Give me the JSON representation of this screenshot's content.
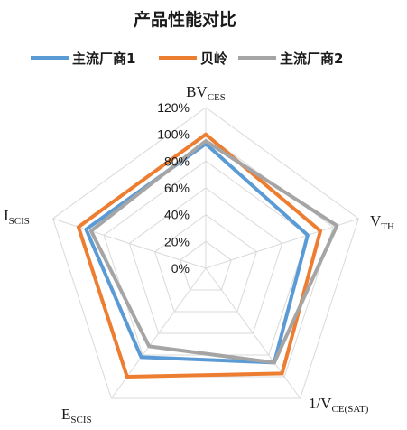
{
  "chart_data": {
    "type": "radar",
    "title": "产品性能对比",
    "legend_position": "top",
    "axes": [
      {
        "main": "BV",
        "sub": "CES"
      },
      {
        "main": "V",
        "sub": "TH"
      },
      {
        "main": "1/V",
        "sub": "CE(SAT)"
      },
      {
        "main": "E",
        "sub": "SCIS"
      },
      {
        "main": "I",
        "sub": "SCIS"
      }
    ],
    "r_ticks": [
      "0%",
      "20%",
      "40%",
      "60%",
      "80%",
      "100%",
      "120%"
    ],
    "r_range": [
      0,
      120
    ],
    "series": [
      {
        "name": "主流厂商1",
        "color": "#5B9BD5",
        "values": [
          93,
          80,
          87,
          82,
          94
        ]
      },
      {
        "name": "贝岭",
        "color": "#ED7D31",
        "values": [
          100,
          90,
          97,
          100,
          100
        ]
      },
      {
        "name": "主流厂商2",
        "color": "#A5A5A5",
        "values": [
          95,
          103,
          87,
          72,
          90
        ]
      }
    ],
    "grid_color": "#D9D9D9"
  }
}
